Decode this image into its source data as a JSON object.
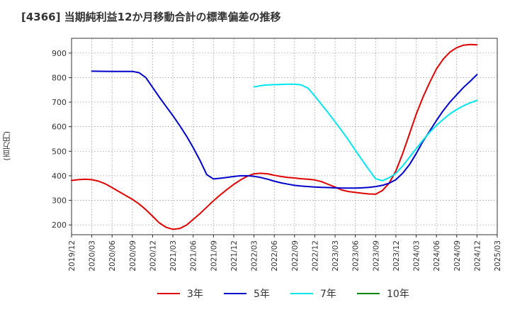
{
  "chart_data": {
    "type": "line",
    "title": "[4366]  当期純利益12か月移動合計の標準偏差の推移",
    "xlabel": "",
    "ylabel": "(百万円)",
    "ylim": [
      160,
      960
    ],
    "yticks": [
      200,
      300,
      400,
      500,
      600,
      700,
      800,
      900
    ],
    "x_range": [
      "2019/12",
      "2025/03"
    ],
    "xticks": [
      "2019/12",
      "2020/03",
      "2020/06",
      "2020/09",
      "2020/12",
      "2021/03",
      "2021/06",
      "2021/09",
      "2021/12",
      "2022/03",
      "2022/06",
      "2022/09",
      "2022/12",
      "2023/03",
      "2023/06",
      "2023/09",
      "2023/12",
      "2024/03",
      "2024/06",
      "2024/09",
      "2024/12",
      "2025/03"
    ],
    "grid": true,
    "legend_position": "bottom",
    "series": [
      {
        "name": "3年",
        "color": "#e00000",
        "x": [
          "2019/12",
          "2020/01",
          "2020/02",
          "2020/03",
          "2020/04",
          "2020/05",
          "2020/06",
          "2020/07",
          "2020/08",
          "2020/09",
          "2020/10",
          "2020/11",
          "2020/12",
          "2021/01",
          "2021/02",
          "2021/03",
          "2021/04",
          "2021/05",
          "2021/06",
          "2021/07",
          "2021/08",
          "2021/09",
          "2021/10",
          "2021/11",
          "2021/12",
          "2022/01",
          "2022/02",
          "2022/03",
          "2022/04",
          "2022/05",
          "2022/06",
          "2022/07",
          "2022/08",
          "2022/09",
          "2022/10",
          "2022/11",
          "2022/12",
          "2023/01",
          "2023/02",
          "2023/03",
          "2023/04",
          "2023/05",
          "2023/06",
          "2023/07",
          "2023/08",
          "2023/09",
          "2023/10",
          "2023/11",
          "2023/12",
          "2024/01",
          "2024/02",
          "2024/03",
          "2024/04",
          "2024/05",
          "2024/06",
          "2024/07",
          "2024/08",
          "2024/09",
          "2024/10",
          "2024/11",
          "2024/12"
        ],
        "values": [
          381,
          384,
          386,
          384,
          378,
          367,
          352,
          336,
          320,
          304,
          285,
          262,
          235,
          208,
          190,
          182,
          185,
          199,
          222,
          246,
          272,
          298,
          322,
          344,
          365,
          383,
          398,
          408,
          410,
          408,
          402,
          397,
          393,
          391,
          388,
          386,
          383,
          376,
          365,
          354,
          342,
          336,
          332,
          329,
          326,
          325,
          340,
          370,
          420,
          490,
          570,
          650,
          720,
          780,
          835,
          875,
          904,
          922,
          932,
          935,
          933
        ]
      },
      {
        "name": "5年",
        "color": "#0000cc",
        "x": [
          "2020/03",
          "2020/06",
          "2020/09",
          "2020/10",
          "2020/11",
          "2020/12",
          "2021/01",
          "2021/02",
          "2021/03",
          "2021/04",
          "2021/05",
          "2021/06",
          "2021/07",
          "2021/08",
          "2021/09",
          "2021/10",
          "2021/11",
          "2021/12",
          "2022/01",
          "2022/02",
          "2022/03",
          "2022/04",
          "2022/05",
          "2022/06",
          "2022/07",
          "2022/08",
          "2022/09",
          "2022/10",
          "2022/11",
          "2022/12",
          "2023/01",
          "2023/02",
          "2023/03",
          "2023/04",
          "2023/05",
          "2023/06",
          "2023/07",
          "2023/08",
          "2023/09",
          "2023/10",
          "2023/11",
          "2023/12",
          "2024/01",
          "2024/02",
          "2024/03",
          "2024/04",
          "2024/05",
          "2024/06",
          "2024/07",
          "2024/08",
          "2024/09",
          "2024/10",
          "2024/11",
          "2024/12"
        ],
        "values": [
          826,
          825,
          825,
          820,
          800,
          760,
          720,
          682,
          645,
          605,
          562,
          515,
          463,
          405,
          387,
          390,
          393,
          397,
          400,
          400,
          398,
          393,
          386,
          378,
          371,
          366,
          361,
          358,
          356,
          354,
          353,
          352,
          351,
          350,
          350,
          350,
          351,
          353,
          356,
          361,
          370,
          384,
          410,
          445,
          490,
          540,
          582,
          625,
          665,
          700,
          730,
          760,
          785,
          812
        ]
      },
      {
        "name": "7年",
        "color": "#00e5ee",
        "x": [
          "2022/03",
          "2022/04",
          "2022/05",
          "2022/06",
          "2022/07",
          "2022/08",
          "2022/09",
          "2022/10",
          "2022/11",
          "2022/12",
          "2023/01",
          "2023/02",
          "2023/03",
          "2023/04",
          "2023/05",
          "2023/06",
          "2023/07",
          "2023/08",
          "2023/09",
          "2023/10",
          "2023/11",
          "2023/12",
          "2024/01",
          "2024/02",
          "2024/03",
          "2024/04",
          "2024/05",
          "2024/06",
          "2024/07",
          "2024/08",
          "2024/09",
          "2024/10",
          "2024/11",
          "2024/12"
        ],
        "values": [
          762,
          767,
          770,
          771,
          772,
          773,
          773,
          770,
          757,
          725,
          690,
          656,
          620,
          583,
          545,
          504,
          464,
          425,
          388,
          380,
          392,
          410,
          440,
          475,
          510,
          545,
          577,
          605,
          630,
          652,
          670,
          685,
          697,
          707
        ]
      },
      {
        "name": "10年",
        "color": "#008800",
        "x": [],
        "values": []
      }
    ]
  }
}
